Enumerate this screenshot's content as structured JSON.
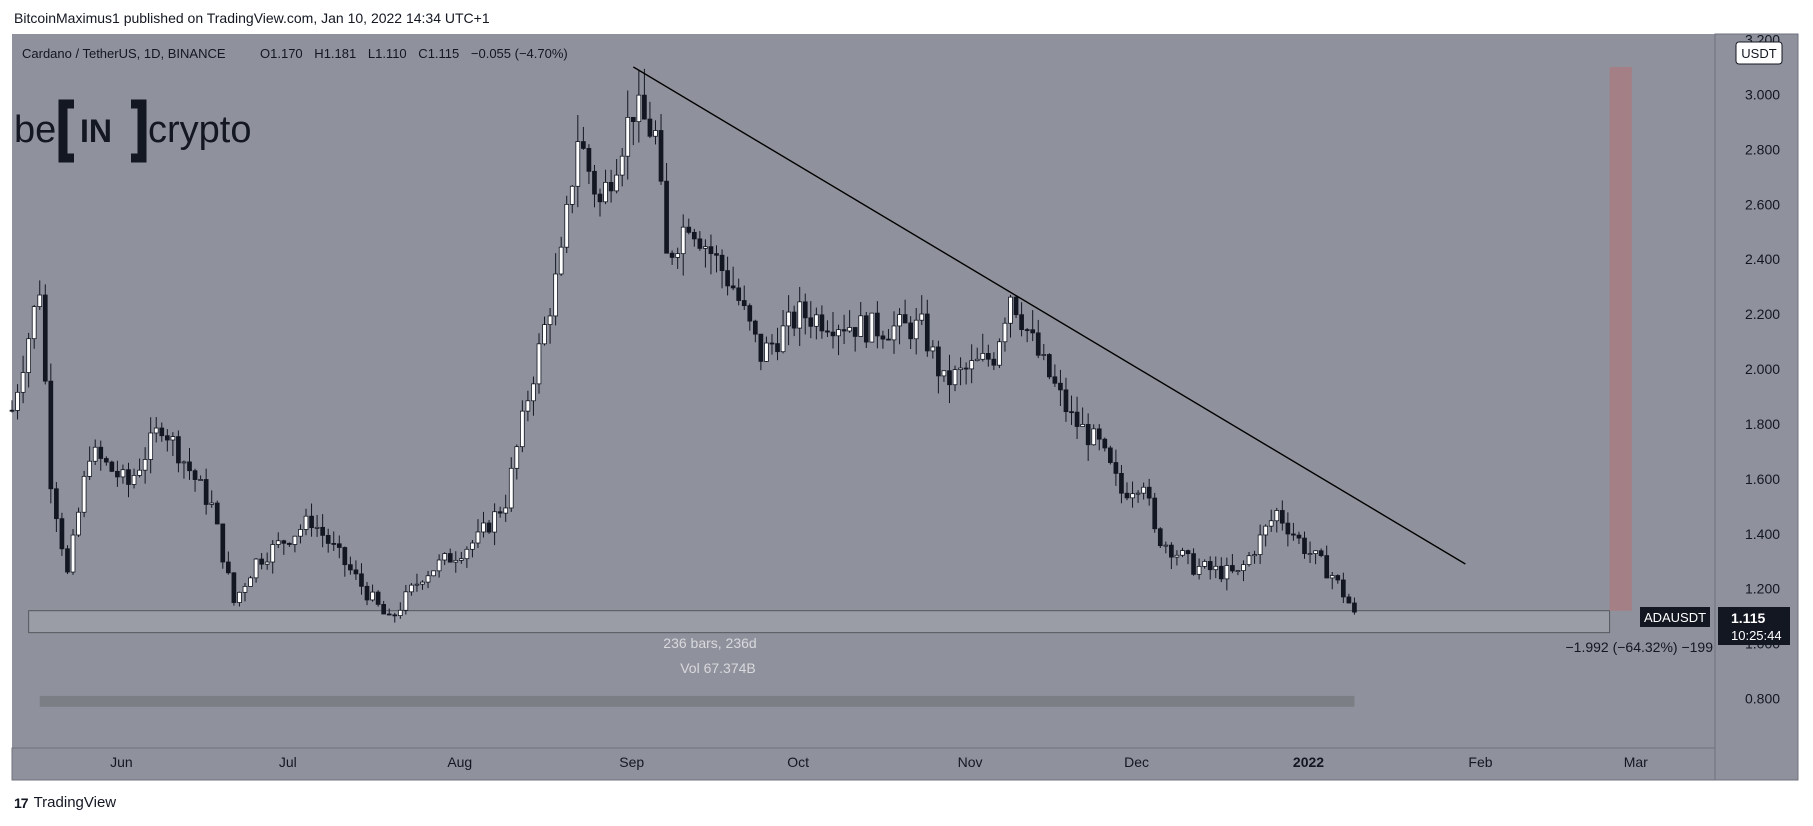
{
  "header": {
    "credit": "BitcoinMaximus1 published on TradingView.com, Jan 10, 2022 14:34 UTC+1"
  },
  "legend": {
    "symbol": "Cardano / TetherUS, 1D, BINANCE",
    "open_label": "O",
    "open": "1.170",
    "high_label": "H",
    "high": "1.181",
    "low_label": "L",
    "low": "1.110",
    "close_label": "C",
    "close": "1.115",
    "change": "−0.055 (−4.70%)"
  },
  "watermark": {
    "left": "be",
    "middle": "IN",
    "right": "crypto"
  },
  "currency_badge": "USDT",
  "price_tag": {
    "symbol": "ADAUSDT",
    "price": "1.115",
    "countdown": "10:25:44"
  },
  "measure": {
    "bars": "236 bars, 236d",
    "volume": "Vol 67.374B",
    "change": "−1.992 (−64.32%) −199"
  },
  "footer": {
    "brand": "TradingView"
  },
  "colors": {
    "background": "#8f929c",
    "candle_up": "#ffffff",
    "candle_down": "#131722",
    "trendline": "#000000",
    "target_zone": "#a57f86",
    "support_zone": "#9a9ca6"
  },
  "chart_data": {
    "type": "candlestick",
    "title": "Cardano / TetherUS, 1D, BINANCE",
    "y_axis": {
      "ticks": [
        "3.200",
        "3.000",
        "2.800",
        "2.600",
        "2.400",
        "2.200",
        "2.000",
        "1.800",
        "1.600",
        "1.400",
        "1.200",
        "1.000",
        "0.800"
      ],
      "range": [
        0.62,
        3.22
      ],
      "scale": "linear",
      "position": "right"
    },
    "x_axis": {
      "ticks": [
        "Jun",
        "Jul",
        "Aug",
        "Sep",
        "Oct",
        "Nov",
        "Dec",
        "2022",
        "Feb",
        "Mar"
      ],
      "range": [
        "2021-05-13",
        "2022-03-16"
      ]
    },
    "grid": false,
    "price_path": [
      {
        "date": "2021-05-13",
        "price": 1.85
      },
      {
        "date": "2021-05-18",
        "price": 2.3
      },
      {
        "date": "2021-05-20",
        "price": 1.6
      },
      {
        "date": "2021-05-23",
        "price": 1.25
      },
      {
        "date": "2021-05-27",
        "price": 1.7
      },
      {
        "date": "2021-06-03",
        "price": 1.58
      },
      {
        "date": "2021-06-09",
        "price": 1.8
      },
      {
        "date": "2021-06-18",
        "price": 1.5
      },
      {
        "date": "2021-06-22",
        "price": 1.15
      },
      {
        "date": "2021-06-26",
        "price": 1.3
      },
      {
        "date": "2021-07-06",
        "price": 1.45
      },
      {
        "date": "2021-07-20",
        "price": 1.08
      },
      {
        "date": "2021-07-26",
        "price": 1.25
      },
      {
        "date": "2021-08-05",
        "price": 1.38
      },
      {
        "date": "2021-08-10",
        "price": 1.52
      },
      {
        "date": "2021-08-14",
        "price": 1.9
      },
      {
        "date": "2021-08-20",
        "price": 2.4
      },
      {
        "date": "2021-08-23",
        "price": 2.85
      },
      {
        "date": "2021-08-27",
        "price": 2.6
      },
      {
        "date": "2021-09-02",
        "price": 2.95
      },
      {
        "date": "2021-09-06",
        "price": 2.85
      },
      {
        "date": "2021-09-08",
        "price": 2.4
      },
      {
        "date": "2021-09-12",
        "price": 2.55
      },
      {
        "date": "2021-09-20",
        "price": 2.3
      },
      {
        "date": "2021-09-25",
        "price": 2.05
      },
      {
        "date": "2021-10-02",
        "price": 2.2
      },
      {
        "date": "2021-10-14",
        "price": 2.15
      },
      {
        "date": "2021-10-24",
        "price": 2.15
      },
      {
        "date": "2021-10-28",
        "price": 1.95
      },
      {
        "date": "2021-11-06",
        "price": 2.05
      },
      {
        "date": "2021-11-09",
        "price": 2.28
      },
      {
        "date": "2021-11-14",
        "price": 2.05
      },
      {
        "date": "2021-11-20",
        "price": 1.82
      },
      {
        "date": "2021-11-25",
        "price": 1.72
      },
      {
        "date": "2021-11-29",
        "price": 1.55
      },
      {
        "date": "2021-12-03",
        "price": 1.6
      },
      {
        "date": "2021-12-05",
        "price": 1.4
      },
      {
        "date": "2021-12-12",
        "price": 1.28
      },
      {
        "date": "2021-12-20",
        "price": 1.25
      },
      {
        "date": "2021-12-27",
        "price": 1.48
      },
      {
        "date": "2022-01-01",
        "price": 1.35
      },
      {
        "date": "2022-01-06",
        "price": 1.25
      },
      {
        "date": "2022-01-10",
        "price": 1.115
      }
    ],
    "annotations": {
      "descending_resistance": {
        "from": {
          "date": "2021-09-02",
          "price": 3.1
        },
        "to": {
          "date": "2022-01-30",
          "price": 1.29
        }
      },
      "support_zone": {
        "from_date": "2021-05-16",
        "to_date": "2022-02-25",
        "price_low": 1.04,
        "price_high": 1.12
      },
      "target_zone": {
        "from_date": "2022-02-25",
        "to_date": "2022-03-01",
        "price_low": 1.12,
        "price_high": 3.1
      },
      "measure_change": {
        "value": -1.992,
        "percent": -64.32,
        "bars": 236
      }
    }
  }
}
